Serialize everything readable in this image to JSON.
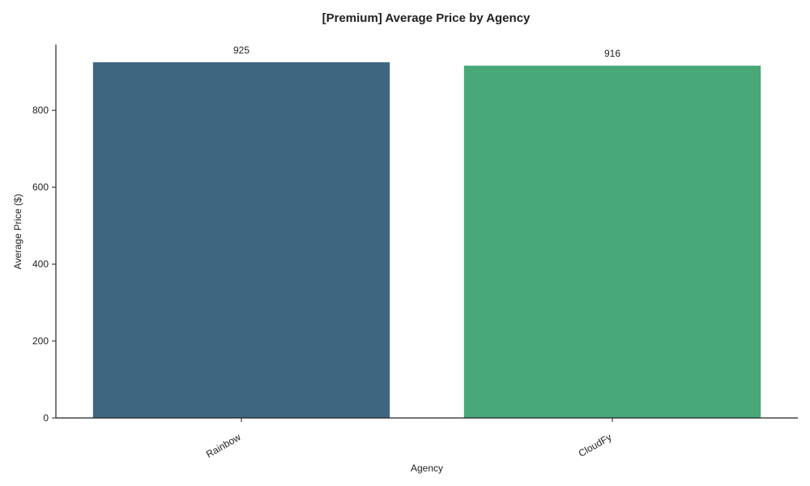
{
  "chart_data": {
    "type": "bar",
    "title": "[Premium] Average Price by Agency",
    "xlabel": "Agency",
    "ylabel": "Average Price ($)",
    "categories": [
      "Rainbow",
      "CloudFy"
    ],
    "values": [
      925,
      916
    ],
    "data_labels": [
      "925",
      "916"
    ],
    "colors": [
      "#3e6681",
      "#48a878"
    ],
    "ylim": [
      0,
      971
    ],
    "yticks": [
      0,
      200,
      400,
      600,
      800
    ],
    "ytick_labels": [
      "0",
      "200",
      "400",
      "600",
      "800"
    ],
    "xtick_rotation_deg": -30,
    "grid": false,
    "legend": "none"
  }
}
